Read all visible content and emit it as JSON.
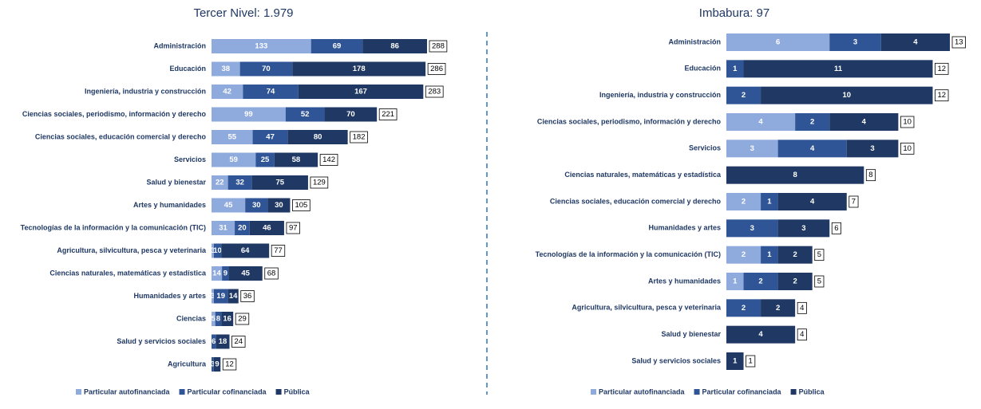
{
  "chart_data": [
    {
      "type": "stacked-barh",
      "title": "Tercer Nivel: 1.979",
      "categories": [
        "Administración",
        "Educación",
        "Ingeniería, industria y construcción",
        "Ciencias sociales, periodismo, información y derecho",
        "Ciencias sociales, educación comercial y derecho",
        "Servicios",
        "Salud y bienestar",
        "Artes y humanidades",
        "Tecnologías de la información y la comunicación (TIC)",
        "Agricultura, silvicultura, pesca y veterinaria",
        "Ciencias naturales, matemáticas y estadística",
        "Humanidades y artes",
        "Ciencias",
        "Salud y servicios sociales",
        "Agricultura"
      ],
      "series": [
        {
          "name": "Particular autofinanciada",
          "color": "#8faadc",
          "values": [
            133,
            38,
            42,
            99,
            55,
            59,
            22,
            45,
            31,
            3,
            14,
            3,
            5,
            null,
            null
          ]
        },
        {
          "name": "Particular cofinanciada",
          "color": "#2f5597",
          "values": [
            69,
            70,
            74,
            52,
            47,
            25,
            32,
            30,
            20,
            10,
            9,
            19,
            8,
            6,
            3
          ]
        },
        {
          "name": "Pública",
          "color": "#1f3864",
          "values": [
            86,
            178,
            167,
            70,
            80,
            58,
            75,
            30,
            46,
            64,
            45,
            14,
            16,
            18,
            9
          ]
        }
      ],
      "totals": [
        288,
        286,
        283,
        221,
        182,
        142,
        129,
        105,
        97,
        77,
        68,
        36,
        29,
        24,
        12
      ]
    },
    {
      "type": "stacked-barh",
      "title": "Imbabura: 97",
      "categories": [
        "Administración",
        "Educación",
        "Ingeniería, industria y construcción",
        "Ciencias sociales, periodismo, información y derecho",
        "Servicios",
        "Ciencias naturales, matemáticas y estadística",
        "Ciencias sociales, educación comercial y derecho",
        "Humanidades y artes",
        "Tecnologías de la información y la comunicación (TIC)",
        "Artes y humanidades",
        "Agricultura, silvicultura, pesca y veterinaria",
        "Salud y bienestar",
        "Salud y servicios sociales"
      ],
      "series": [
        {
          "name": "Particular autofinanciada",
          "color": "#8faadc",
          "values": [
            6,
            null,
            null,
            4,
            3,
            null,
            2,
            null,
            2,
            1,
            null,
            null,
            null
          ]
        },
        {
          "name": "Particular cofinanciada",
          "color": "#2f5597",
          "values": [
            3,
            1,
            2,
            2,
            4,
            null,
            1,
            3,
            1,
            2,
            2,
            null,
            null
          ]
        },
        {
          "name": "Pública",
          "color": "#1f3864",
          "values": [
            4,
            11,
            10,
            4,
            3,
            8,
            4,
            3,
            2,
            2,
            2,
            4,
            1
          ]
        }
      ],
      "totals": [
        13,
        12,
        12,
        10,
        10,
        8,
        7,
        6,
        5,
        5,
        4,
        4,
        1
      ]
    }
  ]
}
